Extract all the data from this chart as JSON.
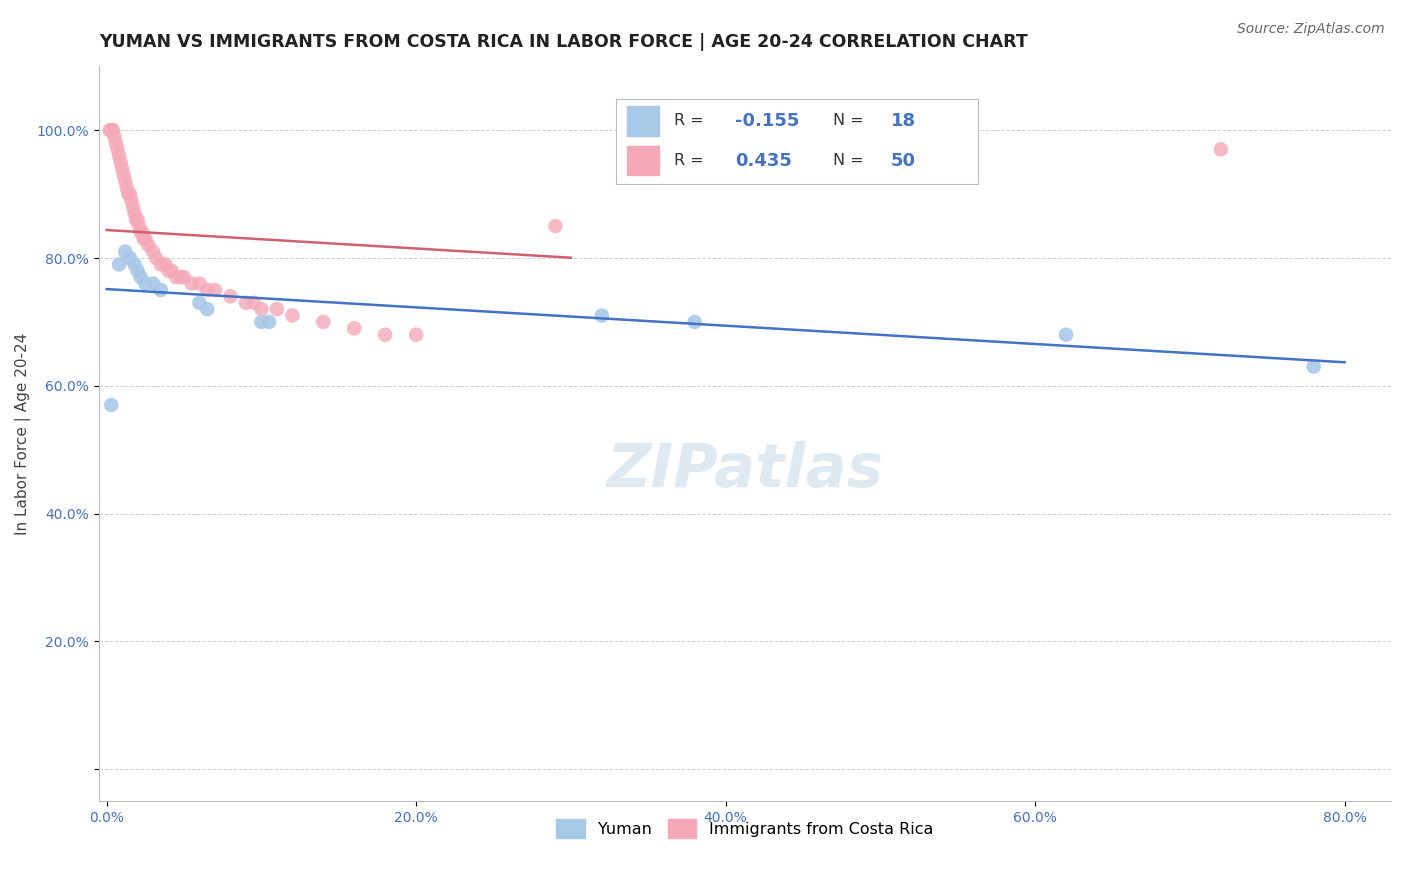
{
  "title": "YUMAN VS IMMIGRANTS FROM COSTA RICA IN LABOR FORCE | AGE 20-24 CORRELATION CHART",
  "source_text": "Source: ZipAtlas.com",
  "ylabel": "In Labor Force | Age 20-24",
  "xlim": [
    -0.005,
    0.83
  ],
  "ylim": [
    -0.05,
    1.1
  ],
  "xtick_vals": [
    0.0,
    0.2,
    0.4,
    0.6,
    0.8
  ],
  "xtick_labels": [
    "0.0%",
    "20.0%",
    "40.0%",
    "60.0%",
    "80.0%"
  ],
  "ytick_vals": [
    0.0,
    0.2,
    0.4,
    0.6,
    0.8,
    1.0
  ],
  "ytick_labels": [
    "",
    "20.0%",
    "40.0%",
    "60.0%",
    "80.0%",
    "100.0%"
  ],
  "background_color": "#ffffff",
  "grid_color": "#d0d0d0",
  "watermark": "ZIPatlas",
  "blue_scatter_x": [
    0.003,
    0.008,
    0.012,
    0.015,
    0.018,
    0.02,
    0.022,
    0.025,
    0.03,
    0.035,
    0.06,
    0.065,
    0.1,
    0.105,
    0.32,
    0.38,
    0.62,
    0.78
  ],
  "blue_scatter_y": [
    0.57,
    0.79,
    0.81,
    0.8,
    0.79,
    0.78,
    0.77,
    0.76,
    0.76,
    0.75,
    0.73,
    0.72,
    0.7,
    0.7,
    0.71,
    0.7,
    0.68,
    0.63
  ],
  "pink_scatter_x": [
    0.002,
    0.003,
    0.004,
    0.005,
    0.006,
    0.007,
    0.008,
    0.009,
    0.01,
    0.011,
    0.012,
    0.013,
    0.014,
    0.015,
    0.016,
    0.017,
    0.018,
    0.019,
    0.02,
    0.021,
    0.022,
    0.023,
    0.024,
    0.025,
    0.027,
    0.03,
    0.032,
    0.035,
    0.038,
    0.04,
    0.042,
    0.045,
    0.048,
    0.05,
    0.055,
    0.06,
    0.065,
    0.07,
    0.08,
    0.09,
    0.095,
    0.1,
    0.11,
    0.12,
    0.14,
    0.16,
    0.18,
    0.2,
    0.29,
    0.72
  ],
  "pink_scatter_y": [
    1.0,
    1.0,
    1.0,
    0.99,
    0.98,
    0.97,
    0.96,
    0.95,
    0.94,
    0.93,
    0.92,
    0.91,
    0.9,
    0.9,
    0.89,
    0.88,
    0.87,
    0.86,
    0.86,
    0.85,
    0.84,
    0.84,
    0.83,
    0.83,
    0.82,
    0.81,
    0.8,
    0.79,
    0.79,
    0.78,
    0.78,
    0.77,
    0.77,
    0.77,
    0.76,
    0.76,
    0.75,
    0.75,
    0.74,
    0.73,
    0.73,
    0.72,
    0.72,
    0.71,
    0.7,
    0.69,
    0.68,
    0.68,
    0.85,
    0.97
  ],
  "blue_R": -0.155,
  "blue_N": 18,
  "pink_R": 0.435,
  "pink_N": 50,
  "blue_color": "#a8c8e8",
  "pink_color": "#f4a8b8",
  "blue_line_color": "#4472c4",
  "pink_line_color": "#d06070",
  "legend_label_blue": "Yuman",
  "legend_label_pink": "Immigrants from Costa Rica",
  "title_fontsize": 12.5,
  "axis_label_fontsize": 11,
  "tick_fontsize": 10,
  "source_fontsize": 10
}
